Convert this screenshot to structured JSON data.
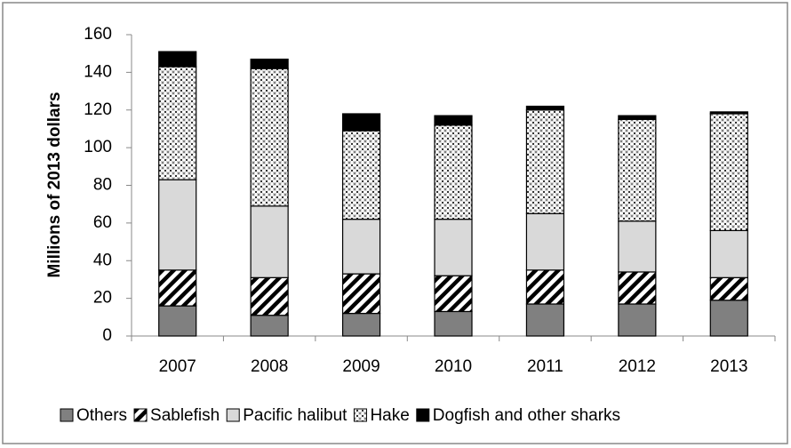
{
  "chart_data": {
    "type": "stacked_bar",
    "y_label": "Millions of 2013 dollars",
    "categories": [
      "2007",
      "2008",
      "2009",
      "2010",
      "2011",
      "2012",
      "2013"
    ],
    "series": [
      {
        "name": "Others",
        "color": "#808080",
        "pattern": "solid",
        "values": [
          16,
          11,
          12,
          13,
          17,
          17,
          19
        ]
      },
      {
        "name": "Sablefish",
        "color": "#000000",
        "pattern": "diagonal",
        "values": [
          19,
          20,
          21,
          19,
          18,
          17,
          12
        ]
      },
      {
        "name": "Pacific halibut",
        "color": "#d9d9d9",
        "pattern": "solid",
        "values": [
          48,
          38,
          29,
          30,
          30,
          27,
          25
        ]
      },
      {
        "name": "Hake",
        "color": "#000000",
        "pattern": "dots",
        "values": [
          60,
          73,
          47,
          50,
          55,
          54,
          62
        ]
      },
      {
        "name": "Dogfish and other sharks",
        "color": "#000000",
        "pattern": "solid",
        "values": [
          8,
          5,
          9,
          5,
          2,
          2,
          1
        ]
      }
    ],
    "ylim": [
      0,
      160
    ],
    "yticks": [
      0,
      20,
      40,
      60,
      80,
      100,
      120,
      140,
      160
    ],
    "grid": false,
    "legend": "bottom"
  }
}
